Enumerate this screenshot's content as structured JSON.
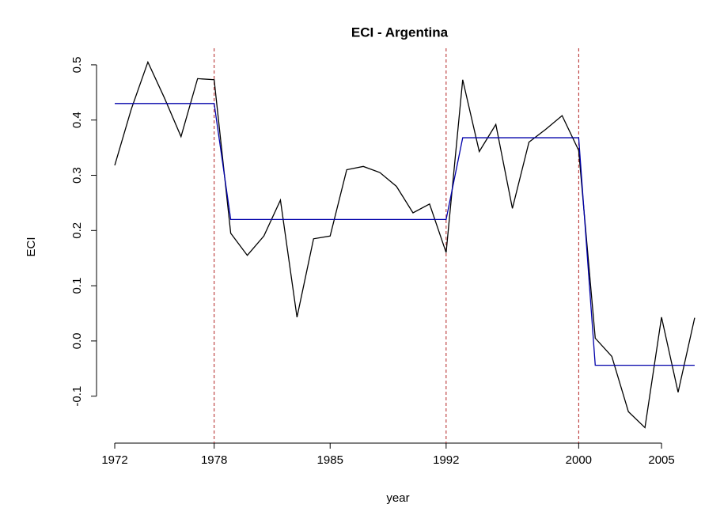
{
  "chart_data": {
    "type": "line",
    "title": "ECI - Argentina",
    "x_label": "year",
    "y_label": "ECI",
    "x": [
      1972,
      1973,
      1974,
      1975,
      1976,
      1977,
      1978,
      1979,
      1980,
      1981,
      1982,
      1983,
      1984,
      1985,
      1986,
      1987,
      1988,
      1989,
      1990,
      1991,
      1992,
      1993,
      1994,
      1995,
      1996,
      1997,
      1998,
      1999,
      2000,
      2001,
      2002,
      2003,
      2004,
      2005,
      2006,
      2007
    ],
    "series": [
      {
        "color": "#000000",
        "values": [
          0.318,
          0.42,
          0.505,
          0.44,
          0.37,
          0.475,
          0.473,
          0.195,
          0.155,
          0.19,
          0.255,
          0.043,
          0.185,
          0.19,
          0.31,
          0.316,
          0.305,
          0.28,
          0.232,
          0.248,
          0.16,
          0.473,
          0.343,
          0.392,
          0.24,
          0.36,
          0.383,
          0.408,
          0.345,
          0.005,
          -0.028,
          -0.128,
          -0.157,
          0.043,
          -0.093,
          0.042
        ]
      },
      {
        "color": "#0000aa",
        "values": [
          0.43,
          0.43,
          0.43,
          0.43,
          0.43,
          0.43,
          0.43,
          0.22,
          0.22,
          0.22,
          0.22,
          0.22,
          0.22,
          0.22,
          0.22,
          0.22,
          0.22,
          0.22,
          0.22,
          0.22,
          0.22,
          0.368,
          0.368,
          0.368,
          0.368,
          0.368,
          0.368,
          0.368,
          0.368,
          -0.044,
          -0.044,
          -0.044,
          -0.044,
          -0.044,
          -0.044,
          -0.044
        ]
      }
    ],
    "vlines": [
      1978,
      1992,
      2000
    ],
    "vline_color": "#b22222",
    "xlim": [
      1970.6,
      2007.6
    ],
    "ylim": [
      -0.185,
      0.53
    ],
    "xticks": [
      1972,
      1978,
      1985,
      1992,
      2000,
      2005
    ],
    "yticks": [
      -0.1,
      {
        "value": 0,
        "label": "0.0"
      },
      0.1,
      0.2,
      0.3,
      0.4,
      0.5
    ]
  }
}
